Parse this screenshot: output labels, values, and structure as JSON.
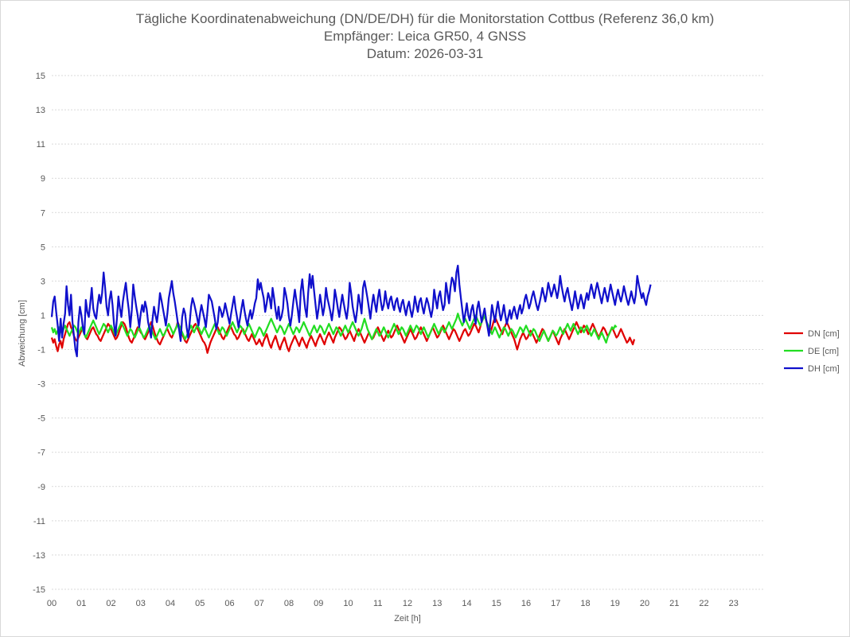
{
  "chart_data": {
    "type": "line",
    "title_lines": [
      "Tägliche Koordinatenabweichung (DN/DE/DH) für die Monitorstation Cottbus (Referenz 36,0 km)",
      "Empfänger: Leica GR50, 4 GNSS",
      "Datum: 2026-03-31"
    ],
    "xlabel": "Zeit [h]",
    "ylabel": "Abweichung [cm]",
    "xlim": [
      0,
      24
    ],
    "ylim": [
      -15,
      15
    ],
    "x_ticks": [
      "00",
      "01",
      "02",
      "03",
      "04",
      "05",
      "06",
      "07",
      "08",
      "09",
      "10",
      "11",
      "12",
      "13",
      "14",
      "15",
      "16",
      "17",
      "18",
      "19",
      "20",
      "21",
      "22",
      "23"
    ],
    "y_ticks": [
      "15",
      "13",
      "11",
      "9",
      "7",
      "5",
      "3",
      "1",
      "-1",
      "-3",
      "-5",
      "-7",
      "-9",
      "-11",
      "-13",
      "-15"
    ],
    "grid": true,
    "legend_position": "right",
    "sample_step_h": 0.05,
    "series": [
      {
        "name": "DN [cm]",
        "color": "#e00000",
        "start_x": 0,
        "values": [
          -0.3,
          -0.6,
          -0.4,
          -0.8,
          -1.1,
          -0.7,
          -0.5,
          -0.9,
          -0.4,
          -0.1,
          0.2,
          0.5,
          0.6,
          0.3,
          0.1,
          -0.2,
          -0.4,
          -0.5,
          -0.3,
          -0.1,
          0.1,
          0.2,
          -0.1,
          -0.3,
          -0.4,
          -0.2,
          0.0,
          0.2,
          0.3,
          0.1,
          -0.1,
          -0.2,
          -0.4,
          -0.5,
          -0.3,
          -0.1,
          0.1,
          0.3,
          0.5,
          0.4,
          0.2,
          0.0,
          -0.2,
          -0.4,
          -0.3,
          -0.1,
          0.2,
          0.4,
          0.6,
          0.5,
          0.3,
          0.0,
          -0.3,
          -0.5,
          -0.6,
          -0.4,
          -0.2,
          0.1,
          0.3,
          0.2,
          0.0,
          -0.1,
          -0.3,
          -0.4,
          -0.2,
          0.0,
          0.3,
          0.6,
          0.4,
          0.1,
          -0.2,
          -0.4,
          -0.6,
          -0.7,
          -0.5,
          -0.3,
          -0.1,
          0.1,
          0.2,
          0.0,
          -0.2,
          -0.3,
          -0.1,
          0.1,
          0.3,
          0.6,
          0.4,
          0.2,
          -0.1,
          -0.3,
          -0.5,
          -0.6,
          -0.4,
          -0.2,
          0.0,
          0.2,
          0.4,
          0.5,
          0.3,
          0.1,
          -0.1,
          -0.3,
          -0.5,
          -0.6,
          -0.8,
          -1.2,
          -0.9,
          -0.6,
          -0.4,
          -0.2,
          0.0,
          0.2,
          0.3,
          0.1,
          -0.1,
          -0.3,
          -0.4,
          -0.2,
          0.0,
          0.2,
          0.4,
          0.3,
          0.1,
          -0.1,
          -0.2,
          -0.4,
          -0.3,
          -0.1,
          0.1,
          0.2,
          0.0,
          -0.2,
          -0.4,
          -0.5,
          -0.3,
          -0.1,
          -0.3,
          -0.5,
          -0.7,
          -0.6,
          -0.4,
          -0.6,
          -0.8,
          -0.5,
          -0.3,
          -0.1,
          -0.4,
          -0.7,
          -0.9,
          -0.6,
          -0.4,
          -0.2,
          -0.5,
          -0.8,
          -1.0,
          -0.7,
          -0.5,
          -0.3,
          -0.6,
          -0.9,
          -1.1,
          -0.8,
          -0.6,
          -0.4,
          -0.2,
          -0.4,
          -0.6,
          -0.8,
          -0.5,
          -0.3,
          -0.5,
          -0.7,
          -0.9,
          -0.6,
          -0.4,
          -0.2,
          -0.4,
          -0.6,
          -0.8,
          -0.5,
          -0.3,
          -0.1,
          -0.3,
          -0.5,
          -0.7,
          -0.4,
          -0.2,
          0.0,
          -0.2,
          -0.4,
          -0.6,
          -0.3,
          -0.1,
          0.1,
          0.3,
          0.2,
          0.0,
          -0.2,
          -0.4,
          -0.3,
          -0.1,
          0.1,
          -0.1,
          -0.3,
          -0.5,
          -0.2,
          0.0,
          0.2,
          0.0,
          -0.2,
          -0.4,
          -0.6,
          -0.4,
          -0.2,
          0.0,
          -0.2,
          -0.4,
          -0.3,
          -0.1,
          0.1,
          0.3,
          0.1,
          -0.1,
          -0.3,
          -0.5,
          -0.3,
          -0.1,
          0.1,
          -0.1,
          -0.3,
          -0.2,
          0.0,
          0.2,
          0.4,
          0.2,
          0.0,
          -0.2,
          -0.4,
          -0.6,
          -0.4,
          -0.2,
          0.0,
          0.2,
          0.0,
          -0.2,
          -0.4,
          -0.3,
          -0.1,
          0.1,
          0.3,
          0.1,
          -0.1,
          -0.3,
          -0.5,
          -0.3,
          -0.1,
          0.1,
          0.3,
          0.1,
          -0.1,
          -0.3,
          -0.2,
          0.0,
          0.2,
          0.4,
          0.2,
          0.0,
          -0.2,
          -0.4,
          -0.2,
          0.0,
          0.2,
          0.1,
          -0.1,
          -0.3,
          -0.5,
          -0.3,
          -0.1,
          0.1,
          0.2,
          0.0,
          -0.2,
          -0.1,
          0.1,
          0.3,
          0.5,
          0.4,
          0.2,
          0.0,
          0.3,
          0.6,
          0.8,
          1.0,
          0.7,
          0.4,
          0.2,
          0.0,
          0.3,
          0.6,
          0.9,
          0.7,
          0.5,
          0.3,
          0.1,
          -0.1,
          0.2,
          0.4,
          0.6,
          0.4,
          0.2,
          0.0,
          -0.2,
          -0.4,
          -0.7,
          -1.0,
          -0.7,
          -0.4,
          -0.2,
          0.0,
          -0.2,
          -0.4,
          -0.3,
          -0.1,
          0.1,
          0.0,
          -0.2,
          -0.4,
          -0.6,
          -0.4,
          -0.2,
          0.0,
          0.2,
          0.1,
          -0.1,
          -0.3,
          -0.5,
          -0.3,
          -0.1,
          0.1,
          -0.1,
          -0.3,
          -0.5,
          -0.7,
          -0.4,
          -0.2,
          0.0,
          0.2,
          0.0,
          -0.2,
          -0.4,
          -0.2,
          0.0,
          0.2,
          0.4,
          0.6,
          0.4,
          0.2,
          0.0,
          0.2,
          0.4,
          0.3,
          0.1,
          -0.1,
          0.1,
          0.3,
          0.5,
          0.3,
          0.1,
          -0.1,
          -0.3,
          -0.1,
          0.1,
          0.3,
          0.2,
          0.0,
          -0.2,
          -0.1,
          0.1,
          0.3,
          0.1,
          -0.1,
          -0.3,
          -0.2,
          0.0,
          0.2,
          0.0,
          -0.2,
          -0.4,
          -0.6,
          -0.5,
          -0.3,
          -0.5,
          -0.7,
          -0.4
        ]
      },
      {
        "name": "DE [cm]",
        "color": "#22dd22",
        "start_x": 0,
        "values": [
          0.3,
          0.0,
          0.2,
          -0.1,
          0.1,
          0.3,
          0.1,
          -0.1,
          0.2,
          0.4,
          0.2,
          0.0,
          -0.2,
          0.0,
          0.2,
          0.4,
          0.3,
          0.1,
          -0.1,
          0.1,
          0.3,
          0.1,
          -0.1,
          -0.3,
          -0.1,
          0.1,
          0.3,
          0.5,
          0.7,
          0.5,
          0.3,
          0.1,
          -0.1,
          0.1,
          0.3,
          0.5,
          0.4,
          0.2,
          0.0,
          0.2,
          0.4,
          0.2,
          0.0,
          -0.2,
          0.0,
          0.2,
          0.4,
          0.6,
          0.4,
          0.2,
          0.0,
          -0.2,
          0.0,
          0.2,
          0.1,
          -0.1,
          -0.3,
          -0.1,
          0.1,
          0.3,
          0.1,
          -0.1,
          -0.3,
          -0.2,
          0.0,
          0.2,
          0.4,
          0.2,
          0.0,
          -0.2,
          -0.4,
          -0.2,
          0.0,
          0.2,
          0.0,
          -0.2,
          -0.1,
          0.1,
          0.3,
          0.5,
          0.3,
          0.1,
          -0.1,
          0.1,
          0.3,
          0.5,
          0.4,
          0.2,
          0.0,
          -0.2,
          -0.4,
          -0.2,
          0.0,
          0.2,
          0.4,
          0.2,
          0.0,
          0.2,
          0.4,
          0.3,
          0.1,
          -0.1,
          0.1,
          0.3,
          0.1,
          -0.1,
          -0.3,
          -0.1,
          0.1,
          0.3,
          0.5,
          0.3,
          0.1,
          -0.1,
          0.1,
          0.3,
          0.2,
          0.0,
          -0.2,
          0.0,
          0.2,
          0.4,
          0.6,
          0.4,
          0.2,
          0.0,
          0.2,
          0.4,
          0.3,
          0.1,
          -0.1,
          0.1,
          0.3,
          0.5,
          0.3,
          0.1,
          -0.1,
          -0.3,
          -0.1,
          0.1,
          0.3,
          0.2,
          0.0,
          -0.2,
          0.0,
          0.2,
          0.4,
          0.6,
          0.8,
          0.6,
          0.4,
          0.2,
          0.0,
          0.2,
          0.4,
          0.3,
          0.1,
          -0.1,
          0.1,
          0.3,
          0.5,
          0.3,
          0.1,
          -0.1,
          0.1,
          0.3,
          0.2,
          0.0,
          0.2,
          0.4,
          0.6,
          0.4,
          0.2,
          0.0,
          -0.2,
          0.0,
          0.2,
          0.4,
          0.2,
          0.0,
          0.2,
          0.4,
          0.3,
          0.1,
          -0.1,
          0.1,
          0.3,
          0.5,
          0.3,
          0.1,
          -0.1,
          0.1,
          0.3,
          0.2,
          0.0,
          -0.2,
          0.0,
          0.2,
          0.4,
          0.2,
          0.0,
          0.2,
          0.4,
          0.6,
          0.4,
          0.2,
          0.0,
          -0.2,
          0.0,
          0.2,
          0.5,
          0.8,
          0.5,
          0.2,
          0.0,
          -0.2,
          -0.4,
          -0.2,
          0.0,
          0.2,
          0.0,
          -0.2,
          -0.1,
          0.1,
          0.3,
          0.1,
          -0.1,
          -0.3,
          -0.1,
          0.1,
          0.3,
          0.5,
          0.3,
          0.1,
          -0.1,
          0.1,
          0.3,
          0.2,
          0.0,
          -0.2,
          0.0,
          0.2,
          0.4,
          0.2,
          0.0,
          0.2,
          0.4,
          0.3,
          0.1,
          -0.1,
          0.1,
          0.3,
          0.1,
          -0.1,
          -0.3,
          -0.1,
          0.1,
          0.3,
          0.5,
          0.3,
          0.1,
          -0.1,
          0.1,
          0.3,
          0.2,
          0.0,
          0.2,
          0.4,
          0.6,
          0.4,
          0.2,
          0.4,
          0.6,
          0.8,
          1.1,
          0.8,
          0.6,
          0.4,
          0.6,
          0.8,
          0.6,
          0.4,
          0.2,
          0.4,
          0.6,
          0.8,
          1.0,
          0.8,
          0.6,
          0.4,
          0.6,
          0.8,
          1.0,
          0.7,
          0.5,
          0.3,
          0.1,
          -0.1,
          0.1,
          0.3,
          0.1,
          -0.1,
          -0.3,
          -0.1,
          0.1,
          0.3,
          0.2,
          0.0,
          -0.2,
          0.0,
          0.2,
          0.1,
          -0.1,
          -0.3,
          -0.1,
          0.1,
          0.3,
          0.2,
          0.0,
          0.2,
          0.4,
          0.2,
          0.0,
          -0.2,
          0.0,
          0.2,
          0.1,
          -0.1,
          -0.3,
          -0.5,
          -0.3,
          -0.1,
          0.1,
          -0.1,
          -0.3,
          -0.5,
          -0.3,
          -0.1,
          0.1,
          0.0,
          -0.2,
          -0.1,
          0.1,
          0.3,
          0.1,
          -0.1,
          0.1,
          0.3,
          0.5,
          0.3,
          0.1,
          0.3,
          0.5,
          0.3,
          0.1,
          -0.1,
          0.1,
          0.3,
          0.2,
          0.0,
          0.2,
          0.4,
          0.2,
          0.0,
          -0.2,
          0.0,
          0.2,
          0.0,
          -0.2,
          -0.4,
          -0.2,
          0.0,
          -0.2,
          -0.4,
          -0.6,
          -0.3,
          -0.1,
          0.1,
          0.3,
          0.2,
          0.4,
          0.3
        ]
      },
      {
        "name": "DH [cm]",
        "color": "#1010cc",
        "start_x": 0,
        "values": [
          0.9,
          1.8,
          2.1,
          1.2,
          0.4,
          -0.5,
          0.8,
          -0.3,
          0.5,
          1.1,
          2.7,
          1.6,
          1.0,
          2.2,
          0.6,
          -0.2,
          -1.0,
          -1.4,
          0.6,
          1.5,
          1.0,
          0.3,
          -0.1,
          1.9,
          1.2,
          0.9,
          1.7,
          2.6,
          1.4,
          1.0,
          0.8,
          1.6,
          2.2,
          1.7,
          2.3,
          3.5,
          2.6,
          1.5,
          1.0,
          1.9,
          2.4,
          1.6,
          0.5,
          -0.2,
          0.8,
          2.1,
          1.4,
          0.9,
          1.8,
          2.4,
          2.9,
          2.0,
          1.3,
          0.3,
          1.3,
          2.8,
          2.1,
          1.5,
          1.0,
          0.3,
          1.1,
          1.6,
          1.2,
          1.8,
          1.4,
          0.6,
          0.2,
          -0.3,
          0.8,
          1.5,
          1.0,
          0.6,
          1.3,
          2.3,
          1.9,
          1.4,
          0.9,
          0.4,
          1.1,
          2.0,
          2.5,
          3.0,
          2.3,
          1.8,
          1.2,
          0.6,
          0.1,
          -0.5,
          0.9,
          1.4,
          1.1,
          0.3,
          -0.3,
          0.5,
          1.5,
          2.0,
          1.7,
          1.3,
          0.9,
          0.4,
          1.1,
          1.6,
          1.2,
          0.8,
          0.3,
          1.2,
          2.2,
          2.0,
          1.8,
          1.3,
          0.8,
          0.2,
          0.6,
          1.5,
          1.3,
          0.9,
          1.2,
          1.7,
          1.3,
          0.9,
          0.5,
          1.1,
          1.6,
          2.1,
          1.4,
          0.9,
          0.3,
          0.8,
          1.4,
          1.9,
          1.3,
          0.8,
          0.4,
          0.9,
          1.3,
          0.8,
          1.2,
          1.7,
          2.0,
          3.1,
          2.5,
          2.9,
          2.4,
          2.0,
          1.2,
          1.7,
          2.3,
          2.0,
          1.4,
          2.6,
          2.0,
          1.3,
          0.8,
          1.5,
          0.7,
          0.9,
          1.4,
          2.6,
          2.2,
          1.7,
          0.9,
          0.4,
          1.0,
          1.8,
          2.5,
          1.9,
          1.3,
          0.6,
          2.4,
          3.1,
          2.2,
          1.4,
          0.9,
          2.3,
          3.4,
          2.6,
          3.3,
          2.4,
          1.6,
          0.8,
          1.4,
          2.2,
          1.6,
          1.0,
          1.5,
          2.6,
          2.0,
          1.6,
          1.2,
          0.7,
          1.4,
          2.5,
          2.0,
          1.4,
          0.9,
          1.6,
          2.2,
          1.7,
          1.2,
          0.8,
          1.5,
          2.9,
          2.3,
          1.5,
          1.0,
          0.6,
          1.3,
          2.2,
          1.7,
          1.1,
          2.6,
          3.0,
          2.5,
          2.0,
          1.4,
          0.8,
          1.6,
          2.2,
          1.7,
          1.2,
          2.0,
          2.5,
          1.8,
          1.3,
          1.6,
          2.4,
          1.8,
          1.4,
          1.9,
          2.1,
          1.6,
          1.3,
          1.8,
          2.0,
          1.5,
          1.2,
          1.7,
          1.9,
          1.4,
          1.0,
          1.5,
          1.8,
          1.3,
          0.9,
          1.4,
          2.1,
          1.6,
          1.2,
          1.8,
          2.0,
          1.5,
          1.1,
          1.6,
          2.0,
          1.7,
          1.3,
          0.9,
          1.4,
          2.5,
          1.9,
          1.4,
          2.1,
          2.4,
          1.8,
          1.3,
          1.6,
          2.9,
          2.3,
          1.7,
          2.6,
          3.2,
          3.0,
          2.4,
          3.5,
          3.9,
          2.8,
          2.0,
          1.3,
          0.6,
          1.1,
          1.7,
          1.0,
          0.7,
          1.3,
          1.6,
          1.0,
          0.5,
          1.4,
          1.8,
          1.2,
          0.6,
          1.0,
          1.4,
          0.8,
          0.3,
          -0.2,
          0.7,
          1.6,
          1.1,
          0.6,
          1.3,
          1.8,
          1.2,
          0.7,
          1.1,
          1.6,
          1.0,
          0.5,
          0.9,
          1.3,
          0.8,
          1.2,
          1.5,
          1.1,
          0.8,
          1.3,
          1.6,
          1.1,
          1.4,
          1.9,
          2.2,
          1.8,
          1.4,
          1.7,
          2.1,
          2.4,
          2.0,
          1.6,
          1.3,
          1.7,
          2.1,
          2.6,
          2.2,
          1.8,
          2.3,
          2.9,
          2.5,
          2.1,
          2.4,
          2.8,
          2.4,
          2.0,
          2.5,
          3.3,
          2.7,
          2.2,
          1.8,
          2.3,
          2.6,
          2.1,
          1.7,
          1.3,
          1.8,
          2.4,
          1.9,
          1.4,
          1.8,
          2.2,
          1.8,
          1.4,
          1.9,
          2.3,
          1.9,
          2.4,
          2.8,
          2.4,
          2.0,
          2.5,
          2.9,
          2.5,
          2.1,
          1.7,
          2.2,
          2.6,
          2.2,
          1.8,
          2.3,
          2.8,
          2.4,
          2.0,
          1.6,
          2.1,
          2.5,
          2.1,
          1.8,
          2.2,
          2.7,
          2.3,
          1.9,
          1.6,
          2.0,
          2.4,
          2.0,
          1.7,
          2.2,
          3.3,
          2.8,
          2.4,
          2.0,
          2.3,
          1.9,
          1.6,
          2.1,
          2.4,
          2.8
        ]
      }
    ]
  }
}
